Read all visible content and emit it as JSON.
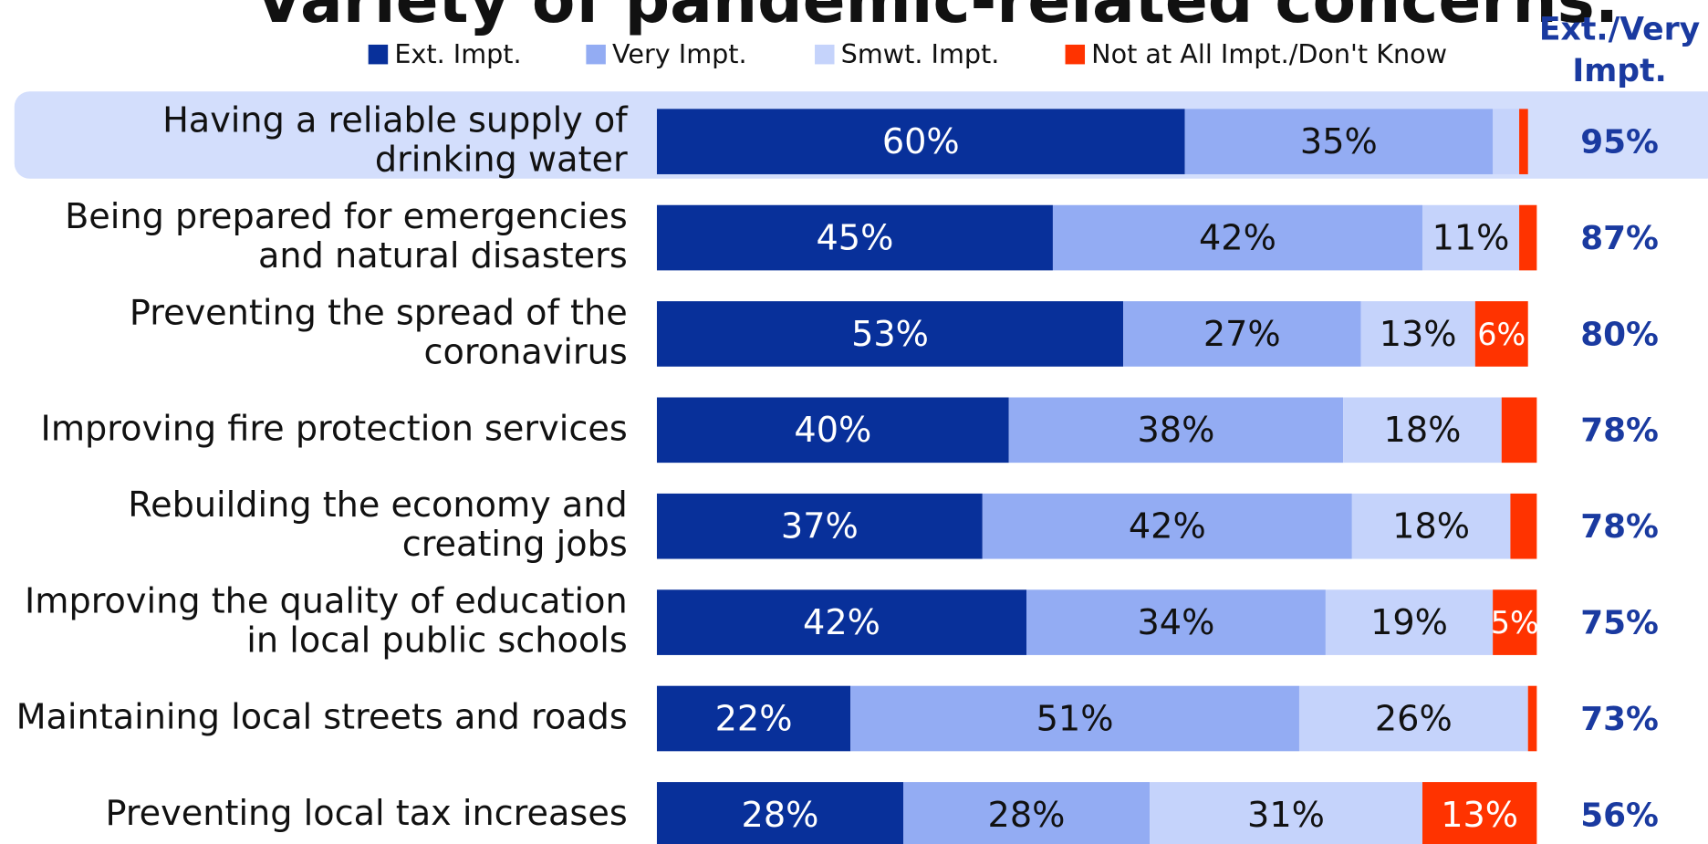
{
  "chart_data": {
    "type": "stacked-bar-horizontal",
    "title": "Variety of pandemic-related concerns.",
    "categories": [
      [
        "Having a reliable supply of",
        "drinking water"
      ],
      [
        "Being prepared for emergencies",
        "and natural disasters"
      ],
      [
        "Preventing the spread of the",
        "coronavirus"
      ],
      [
        "Improving fire protection services"
      ],
      [
        "Rebuilding the economy and",
        "creating jobs"
      ],
      [
        "Improving the quality of education",
        "in local public schools"
      ],
      [
        "Maintaining local streets and roads"
      ],
      [
        "Preventing local tax increases"
      ]
    ],
    "xlim": [
      0,
      100
    ],
    "series": [
      {
        "name": "Ext. Impt.",
        "color": "#08309a",
        "label_color": "#ffffff",
        "values": [
          60,
          45,
          53,
          40,
          37,
          42,
          22,
          28
        ],
        "value_labels": [
          "60%",
          "45%",
          "53%",
          "40%",
          "37%",
          "42%",
          "22%",
          "28%"
        ]
      },
      {
        "name": "Very Impt.",
        "color": "#93acf3",
        "label_color": "#111111",
        "values": [
          35,
          42,
          27,
          38,
          42,
          34,
          51,
          28
        ],
        "value_labels": [
          "35%",
          "42%",
          "27%",
          "38%",
          "42%",
          "34%",
          "51%",
          "28%"
        ]
      },
      {
        "name": "Smwt. Impt.",
        "color": "#c5d3fb",
        "label_color": "#111111",
        "values": [
          3,
          11,
          13,
          18,
          18,
          19,
          26,
          31
        ],
        "value_labels": [
          null,
          "11%",
          "13%",
          "18%",
          "18%",
          "19%",
          "26%",
          "31%"
        ]
      },
      {
        "name": "Not at All Impt./Don't Know",
        "color": "#ff3300",
        "label_color": "#ffffff",
        "values": [
          1,
          2,
          6,
          4,
          3,
          5,
          1,
          13
        ],
        "value_labels": [
          null,
          null,
          "6%",
          null,
          null,
          "5%",
          null,
          "13%"
        ]
      }
    ],
    "totals": {
      "name": [
        "Ext./Very",
        "Impt."
      ],
      "color": "#1a3aa0",
      "values": [
        95,
        87,
        80,
        78,
        78,
        75,
        73,
        56
      ],
      "value_labels": [
        "95%",
        "87%",
        "80%",
        "78%",
        "78%",
        "75%",
        "73%",
        "56%"
      ]
    }
  }
}
